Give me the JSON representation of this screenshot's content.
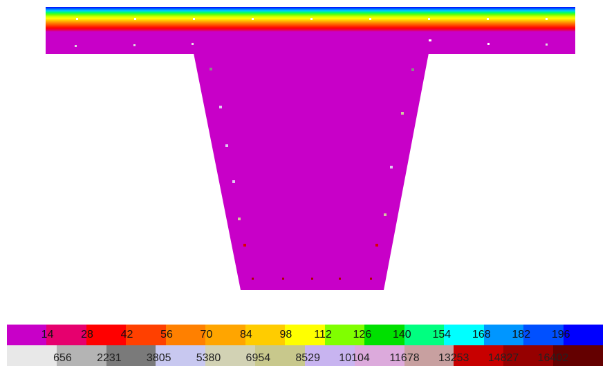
{
  "colors": {
    "section_fill": "#c800c8",
    "reinforcement_bottom": "#aa0000",
    "reinforcement_low_web": "#dd0000"
  },
  "flange_gradient": [
    "#0000ff",
    "#0066ff",
    "#00ccff",
    "#00ff66",
    "#66ff00",
    "#ccff00",
    "#ffff00",
    "#ffcc00",
    "#ff9900",
    "#ff6600",
    "#ff3300",
    "#ff0000",
    "#e6004c",
    "#c800c8"
  ],
  "legend_temperature": [
    {
      "label": "14",
      "color": "#c800c8"
    },
    {
      "label": "28",
      "color": "#e6006e"
    },
    {
      "label": "42",
      "color": "#ff0000"
    },
    {
      "label": "56",
      "color": "#ff4000"
    },
    {
      "label": "70",
      "color": "#ff8000"
    },
    {
      "label": "84",
      "color": "#ffa500"
    },
    {
      "label": "98",
      "color": "#ffcc00"
    },
    {
      "label": "112",
      "color": "#ffff00"
    },
    {
      "label": "126",
      "color": "#80ff00"
    },
    {
      "label": "140",
      "color": "#00e000"
    },
    {
      "label": "154",
      "color": "#00ff80"
    },
    {
      "label": "168",
      "color": "#00ffff"
    },
    {
      "label": "182",
      "color": "#0096ff"
    },
    {
      "label": "196",
      "color": "#0050ff"
    },
    {
      "label": "",
      "color": "#0000ff"
    }
  ],
  "legend_stress": [
    {
      "label": "656",
      "color": "#e8e8e8"
    },
    {
      "label": "2231",
      "color": "#b4b4b4"
    },
    {
      "label": "3805",
      "color": "#7a7a7a"
    },
    {
      "label": "5380",
      "color": "#c8c8f0"
    },
    {
      "label": "6954",
      "color": "#d2d2b4"
    },
    {
      "label": "8529",
      "color": "#c8c88c"
    },
    {
      "label": "10104",
      "color": "#c8b4f0"
    },
    {
      "label": "11678",
      "color": "#dcaadc"
    },
    {
      "label": "13253",
      "color": "#c8a0a0"
    },
    {
      "label": "14827",
      "color": "#c80000"
    },
    {
      "label": "16402",
      "color": "#960000"
    },
    {
      "label": "",
      "color": "#640000"
    }
  ]
}
